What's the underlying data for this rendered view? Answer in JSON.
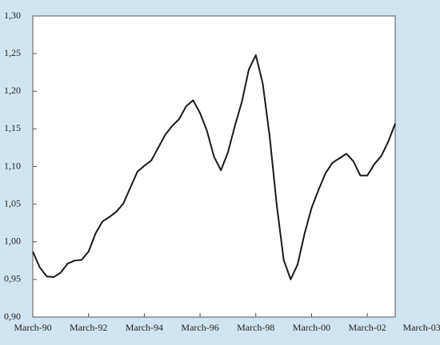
{
  "chart_data": {
    "type": "line",
    "x": [
      1990,
      1990.25,
      1990.5,
      1990.75,
      1991,
      1991.25,
      1991.5,
      1991.75,
      1992,
      1992.25,
      1992.5,
      1992.75,
      1993,
      1993.25,
      1993.5,
      1993.75,
      1994,
      1994.25,
      1994.5,
      1994.75,
      1995,
      1995.25,
      1995.5,
      1995.75,
      1996,
      1996.25,
      1996.5,
      1996.75,
      1997,
      1997.25,
      1997.5,
      1997.75,
      1998,
      1998.25,
      1998.5,
      1998.75,
      1999,
      1999.25,
      1999.5,
      1999.75,
      2000,
      2000.25,
      2000.5,
      2000.75,
      2001,
      2001.25,
      2001.5,
      2001.75,
      2002,
      2002.25,
      2002.5,
      2002.75,
      2003
    ],
    "series": [
      {
        "color": "#1a1a1a",
        "values": [
          0.987,
          0.966,
          0.954,
          0.953,
          0.959,
          0.971,
          0.975,
          0.976,
          0.987,
          1.011,
          1.027,
          1.033,
          1.04,
          1.051,
          1.072,
          1.093,
          1.101,
          1.108,
          1.125,
          1.142,
          1.154,
          1.163,
          1.18,
          1.188,
          1.171,
          1.147,
          1.113,
          1.095,
          1.119,
          1.154,
          1.186,
          1.229,
          1.248,
          1.21,
          1.139,
          1.049,
          0.976,
          0.95,
          0.97,
          1.011,
          1.045,
          1.069,
          1.091,
          1.105,
          1.111,
          1.117,
          1.107,
          1.088,
          1.088,
          1.103,
          1.114,
          1.133,
          1.157
        ]
      }
    ],
    "xlim": [
      1990,
      2003
    ],
    "xticks": [
      {
        "value": 1990,
        "label": "March-90"
      },
      {
        "value": 1992,
        "label": "March-92"
      },
      {
        "value": 1994,
        "label": "March-94"
      },
      {
        "value": 1996,
        "label": "March-96"
      },
      {
        "value": 1998,
        "label": "March-98"
      },
      {
        "value": 2000,
        "label": "March-00"
      },
      {
        "value": 2002,
        "label": "March-02"
      },
      {
        "value": 2003,
        "label": "March-03"
      }
    ],
    "ylim": [
      0.9,
      1.3
    ],
    "yticks": [
      {
        "value": 0.9,
        "label": "0,90"
      },
      {
        "value": 0.95,
        "label": "0,95"
      },
      {
        "value": 1.0,
        "label": "1,00"
      },
      {
        "value": 1.05,
        "label": "1,05"
      },
      {
        "value": 1.1,
        "label": "1,10"
      },
      {
        "value": 1.15,
        "label": "1,15"
      },
      {
        "value": 1.2,
        "label": "1,20"
      },
      {
        "value": 1.25,
        "label": "1,25"
      },
      {
        "value": 1.3,
        "label": "1,30"
      }
    ],
    "grid": false
  }
}
